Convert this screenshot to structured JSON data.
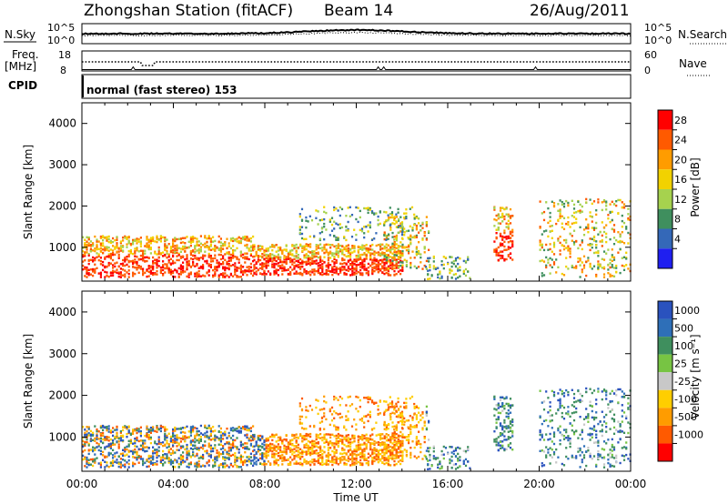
{
  "header": {
    "title": "Zhongshan Station (fitACF)",
    "beam": "Beam 14",
    "date": "26/Aug/2011"
  },
  "noise_panel": {
    "left_label": "N.Sky",
    "right_label": "N.Search",
    "left_ticks": [
      "10^5",
      "10^0"
    ],
    "right_ticks": [
      "10^5",
      "10^0"
    ]
  },
  "freq_panel": {
    "left_label_1": "Freq.",
    "left_label_2": "[MHz]",
    "right_label": "Nave",
    "left_ticks": [
      "18",
      "8"
    ],
    "right_ticks": [
      "60",
      "0"
    ]
  },
  "cpid_panel": {
    "label": "CPID",
    "text": "normal (fast stereo) 153"
  },
  "chart_data": [
    {
      "type": "heatmap",
      "quantity": "power",
      "ylabel": "Slant Range [km]",
      "colorbar_label": "Power [dB]",
      "ylim": [
        180,
        4500
      ],
      "yticks": [
        1000,
        2000,
        3000,
        4000
      ],
      "xlim_hours": [
        0,
        24
      ],
      "xticks": [
        "00:00",
        "04:00",
        "08:00",
        "12:00",
        "16:00",
        "20:00",
        "00:00"
      ],
      "colorbar_ticks": [
        "28",
        "24",
        "20",
        "16",
        "12",
        "8",
        "4"
      ],
      "colorbar_colors": [
        "#ff0000",
        "#ff5a00",
        "#ff9c00",
        "#f2d200",
        "#a6d24e",
        "#3f8f5e",
        "#3468b8",
        "#1f1ff0"
      ],
      "scatter_regions": [
        {
          "t0": 0.0,
          "t1": 7.5,
          "r0": 300,
          "r1": 1300,
          "level": "high"
        },
        {
          "t0": 7.5,
          "t1": 14.0,
          "r0": 350,
          "r1": 1100,
          "level": "high"
        },
        {
          "t0": 13.2,
          "t1": 15.2,
          "r0": 500,
          "r1": 1800,
          "level": "mid"
        },
        {
          "t0": 9.5,
          "t1": 14.5,
          "r0": 1200,
          "r1": 2000,
          "level": "low"
        },
        {
          "t0": 15.0,
          "t1": 17.0,
          "r0": 250,
          "r1": 800,
          "level": "low"
        },
        {
          "t0": 18.0,
          "t1": 18.8,
          "r0": 700,
          "r1": 2000,
          "level": "high"
        },
        {
          "t0": 20.0,
          "t1": 24.0,
          "r0": 300,
          "r1": 2200,
          "level": "mid"
        }
      ]
    },
    {
      "type": "heatmap",
      "quantity": "velocity",
      "ylabel": "Slant Range [km]",
      "colorbar_label": "Velocity [m s⁻¹]",
      "ylim": [
        180,
        4500
      ],
      "yticks": [
        1000,
        2000,
        3000,
        4000
      ],
      "xlim_hours": [
        0,
        24
      ],
      "xticks": [
        "00:00",
        "04:00",
        "08:00",
        "12:00",
        "16:00",
        "20:00",
        "00:00"
      ],
      "xlabel": "Time UT",
      "colorbar_ticks": [
        "1000",
        "500",
        "100",
        "25",
        "-25",
        "-100",
        "-500",
        "-1000"
      ],
      "colorbar_colors": [
        "#2a52be",
        "#2e6fb8",
        "#3f8f5e",
        "#77c443",
        "#c8c8c8",
        "#ffce00",
        "#ff9c00",
        "#ff5a00",
        "#ff0000"
      ]
    }
  ]
}
